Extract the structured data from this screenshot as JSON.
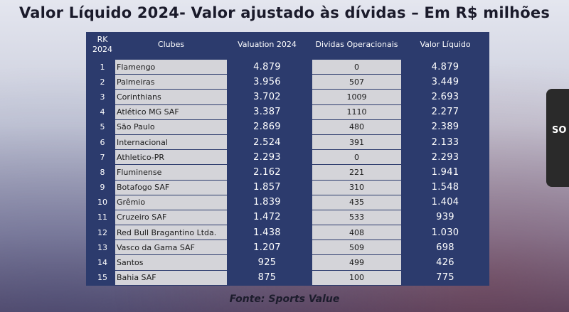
{
  "title": "Valor Líquido 2024- Valor ajustado às dívidas – Em R$ milhões",
  "headers": {
    "rank_line1": "RK",
    "rank_line2": "2024",
    "club": "Clubes",
    "valuation": "Valuation 2024",
    "debts": "Dividas Operacionais",
    "net": "Valor Líquido"
  },
  "rows": [
    {
      "rank": "1",
      "club": "Flamengo",
      "valuation": "4.879",
      "debts": "0",
      "net": "4.879"
    },
    {
      "rank": "2",
      "club": "Palmeiras",
      "valuation": "3.956",
      "debts": "507",
      "net": "3.449"
    },
    {
      "rank": "3",
      "club": "Corinthians",
      "valuation": "3.702",
      "debts": "1009",
      "net": "2.693"
    },
    {
      "rank": "4",
      "club": "Atlético MG SAF",
      "valuation": "3.387",
      "debts": "1110",
      "net": "2.277"
    },
    {
      "rank": "5",
      "club": "São Paulo",
      "valuation": "2.869",
      "debts": "480",
      "net": "2.389"
    },
    {
      "rank": "6",
      "club": "Internacional",
      "valuation": "2.524",
      "debts": "391",
      "net": "2.133"
    },
    {
      "rank": "7",
      "club": "Athletico-PR",
      "valuation": "2.293",
      "debts": "0",
      "net": "2.293"
    },
    {
      "rank": "8",
      "club": "Fluminense",
      "valuation": "2.162",
      "debts": "221",
      "net": "1.941"
    },
    {
      "rank": "9",
      "club": "Botafogo SAF",
      "valuation": "1.857",
      "debts": "310",
      "net": "1.548"
    },
    {
      "rank": "10",
      "club": "Grêmio",
      "valuation": "1.839",
      "debts": "435",
      "net": "1.404"
    },
    {
      "rank": "11",
      "club": "Cruzeiro SAF",
      "valuation": "1.472",
      "debts": "533",
      "net": "939"
    },
    {
      "rank": "12",
      "club": "Red Bull Bragantino Ltda.",
      "valuation": "1.438",
      "debts": "408",
      "net": "1.030"
    },
    {
      "rank": "13",
      "club": "Vasco da Gama SAF",
      "valuation": "1.207",
      "debts": "509",
      "net": "698"
    },
    {
      "rank": "14",
      "club": "Santos",
      "valuation": "925",
      "debts": "499",
      "net": "426"
    },
    {
      "rank": "15",
      "club": "Bahia SAF",
      "valuation": "875",
      "debts": "100",
      "net": "775"
    }
  ],
  "source": "Fonte: Sports Value",
  "side_overlay_text": "SO",
  "colors": {
    "table_bg": "#2c3b6d",
    "light_column": "#d4d4d9",
    "header_text": "#ffffff"
  }
}
